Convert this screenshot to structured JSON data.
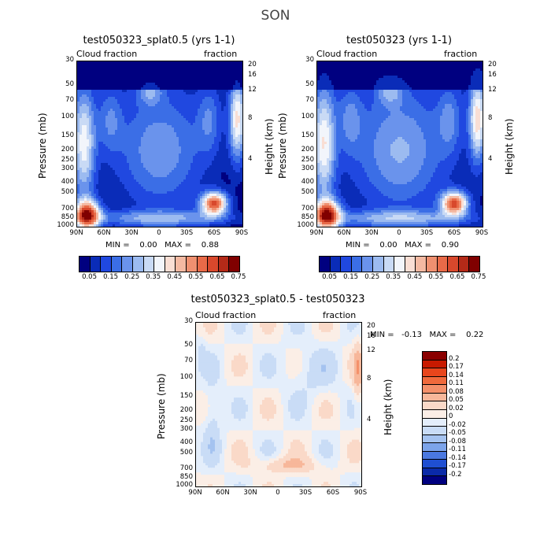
{
  "title": "SON",
  "chart_data": [
    {
      "type": "heatmap",
      "title": "test050323_splat0.5 (yrs 1-1)",
      "left_label": "Cloud fraction",
      "right_label": "fraction",
      "xlabel": "",
      "ylabel": "Pressure (mb)",
      "y2label": "Height (km)",
      "x_ticks": [
        "90N",
        "60N",
        "30N",
        "0",
        "30S",
        "60S",
        "90S"
      ],
      "y_ticks": [
        30,
        50,
        70,
        100,
        150,
        200,
        250,
        300,
        400,
        500,
        700,
        850,
        1000
      ],
      "y_scale": "log",
      "y2_ticks": [
        20,
        16,
        12,
        8,
        4
      ],
      "stats": "MIN =    0.00   MAX =    0.88",
      "colorbar_labels": [
        "0.05",
        "0.15",
        "0.25",
        "0.35",
        "0.45",
        "0.55",
        "0.65",
        "0.75"
      ],
      "colorbar_colors": [
        "#000080",
        "#0a2cb8",
        "#2048e0",
        "#3b6ee6",
        "#6a93ec",
        "#9cbbf0",
        "#c9daf5",
        "#f2f5fb",
        "#f9ded4",
        "#f4b9a2",
        "#ef9070",
        "#e86a48",
        "#d8482c",
        "#b42a18",
        "#800000"
      ]
    },
    {
      "type": "heatmap",
      "title": "test050323 (yrs 1-1)",
      "left_label": "Cloud fraction",
      "right_label": "fraction",
      "xlabel": "",
      "ylabel": "Pressure (mb)",
      "y2label": "Height (km)",
      "x_ticks": [
        "90N",
        "60N",
        "30N",
        "0",
        "30S",
        "60S",
        "90S"
      ],
      "y_ticks": [
        30,
        50,
        70,
        100,
        150,
        200,
        250,
        300,
        400,
        500,
        700,
        850,
        1000
      ],
      "y_scale": "log",
      "y2_ticks": [
        20,
        16,
        12,
        8,
        4
      ],
      "stats": "MIN =    0.00   MAX =    0.90",
      "colorbar_labels": [
        "0.05",
        "0.15",
        "0.25",
        "0.35",
        "0.45",
        "0.55",
        "0.65",
        "0.75"
      ],
      "colorbar_colors": [
        "#000080",
        "#0a2cb8",
        "#2048e0",
        "#3b6ee6",
        "#6a93ec",
        "#9cbbf0",
        "#c9daf5",
        "#f2f5fb",
        "#f9ded4",
        "#f4b9a2",
        "#ef9070",
        "#e86a48",
        "#d8482c",
        "#b42a18",
        "#800000"
      ]
    },
    {
      "type": "heatmap",
      "title": "test050323_splat0.5 - test050323",
      "left_label": "Cloud fraction",
      "right_label": "fraction",
      "xlabel": "",
      "ylabel": "Pressure (mb)",
      "y2label": "Height (km)",
      "x_ticks": [
        "90N",
        "60N",
        "30N",
        "0",
        "30S",
        "60S",
        "90S"
      ],
      "y_ticks": [
        30,
        50,
        70,
        100,
        150,
        200,
        250,
        300,
        400,
        500,
        700,
        850,
        1000
      ],
      "y_scale": "log",
      "y2_ticks": [
        20,
        16,
        12,
        8,
        4
      ],
      "stats": "MIN =   -0.13   MAX =    0.22",
      "colorbar_labels": [
        "0.2",
        "0.17",
        "0.14",
        "0.11",
        "0.08",
        "0.05",
        "0.02",
        "0",
        "-0.02",
        "-0.05",
        "-0.08",
        "-0.11",
        "-0.14",
        "-0.17",
        "-0.2"
      ],
      "colorbar_colors": [
        "#8a0000",
        "#c81a00",
        "#e8461c",
        "#f06a3c",
        "#f4906a",
        "#f7b79a",
        "#fad9c8",
        "#fbeee6",
        "#e4eefb",
        "#c9dcf6",
        "#a5c3f0",
        "#7ca4ea",
        "#4a78e0",
        "#1f4fd2",
        "#0a2aa8",
        "#000080"
      ]
    }
  ]
}
